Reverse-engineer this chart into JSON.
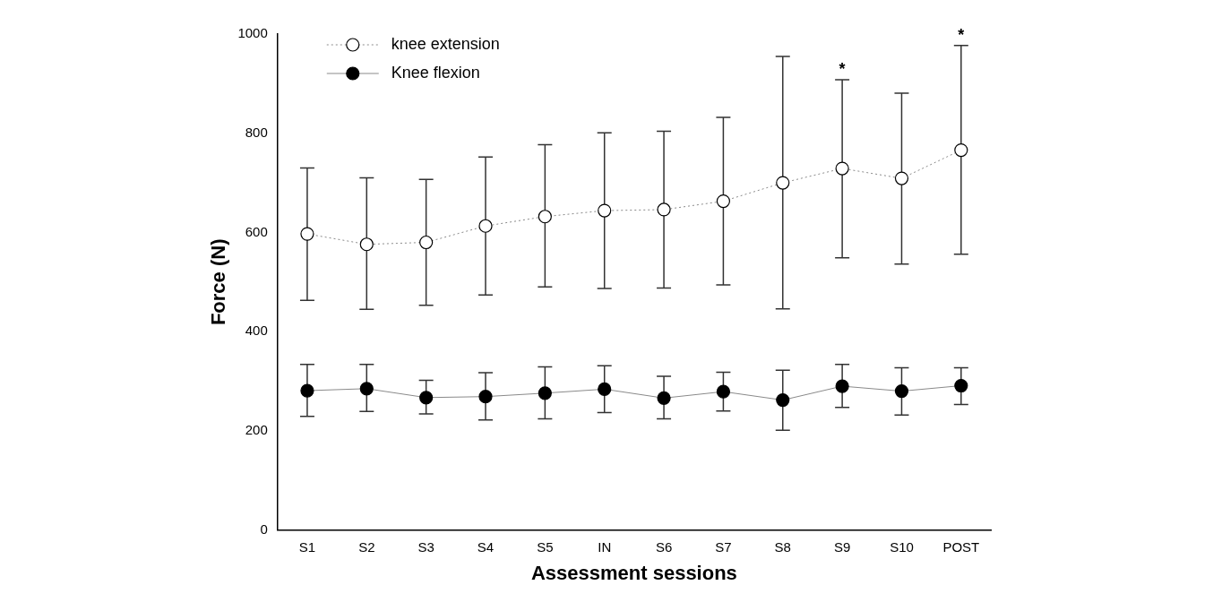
{
  "chart_data": {
    "type": "line",
    "xlabel": "Assessment sessions",
    "ylabel": "Force (N)",
    "categories": [
      "S1",
      "S2",
      "S3",
      "S4",
      "S5",
      "IN",
      "S6",
      "S7",
      "S8",
      "S9",
      "S10",
      "POST"
    ],
    "series": [
      {
        "name": "knee extension",
        "color": "#ffffff",
        "marker": "circle",
        "line_style": "dotted",
        "values": [
          597,
          576,
          580,
          613,
          632,
          644,
          646,
          663,
          700,
          729,
          709,
          766
        ],
        "errors": [
          [
            463,
            730
          ],
          [
            445,
            710
          ],
          [
            453,
            707
          ],
          [
            474,
            752
          ],
          [
            490,
            777
          ],
          [
            487,
            801
          ],
          [
            488,
            804
          ],
          [
            494,
            832
          ],
          [
            446,
            955
          ],
          [
            549,
            908
          ],
          [
            536,
            881
          ],
          [
            556,
            977
          ]
        ]
      },
      {
        "name": "Knee flexion",
        "color": "#000000",
        "marker": "circle",
        "line_style": "solid",
        "values": [
          281,
          285,
          267,
          269,
          276,
          284,
          266,
          279,
          262,
          290,
          280,
          291
        ],
        "errors": [
          [
            229,
            334
          ],
          [
            239,
            334
          ],
          [
            234,
            302
          ],
          [
            222,
            317
          ],
          [
            224,
            329
          ],
          [
            237,
            331
          ],
          [
            224,
            310
          ],
          [
            240,
            318
          ],
          [
            201,
            322
          ],
          [
            247,
            334
          ],
          [
            232,
            327
          ],
          [
            253,
            327
          ]
        ]
      }
    ],
    "ylim": [
      0,
      1000
    ],
    "yticks": [
      0,
      200,
      400,
      600,
      800,
      1000
    ],
    "grid": false,
    "legend": "top left",
    "annotations": [
      {
        "text": "*",
        "x": "S9",
        "y": 908
      },
      {
        "text": "*",
        "x": "POST",
        "y": 977
      }
    ]
  }
}
